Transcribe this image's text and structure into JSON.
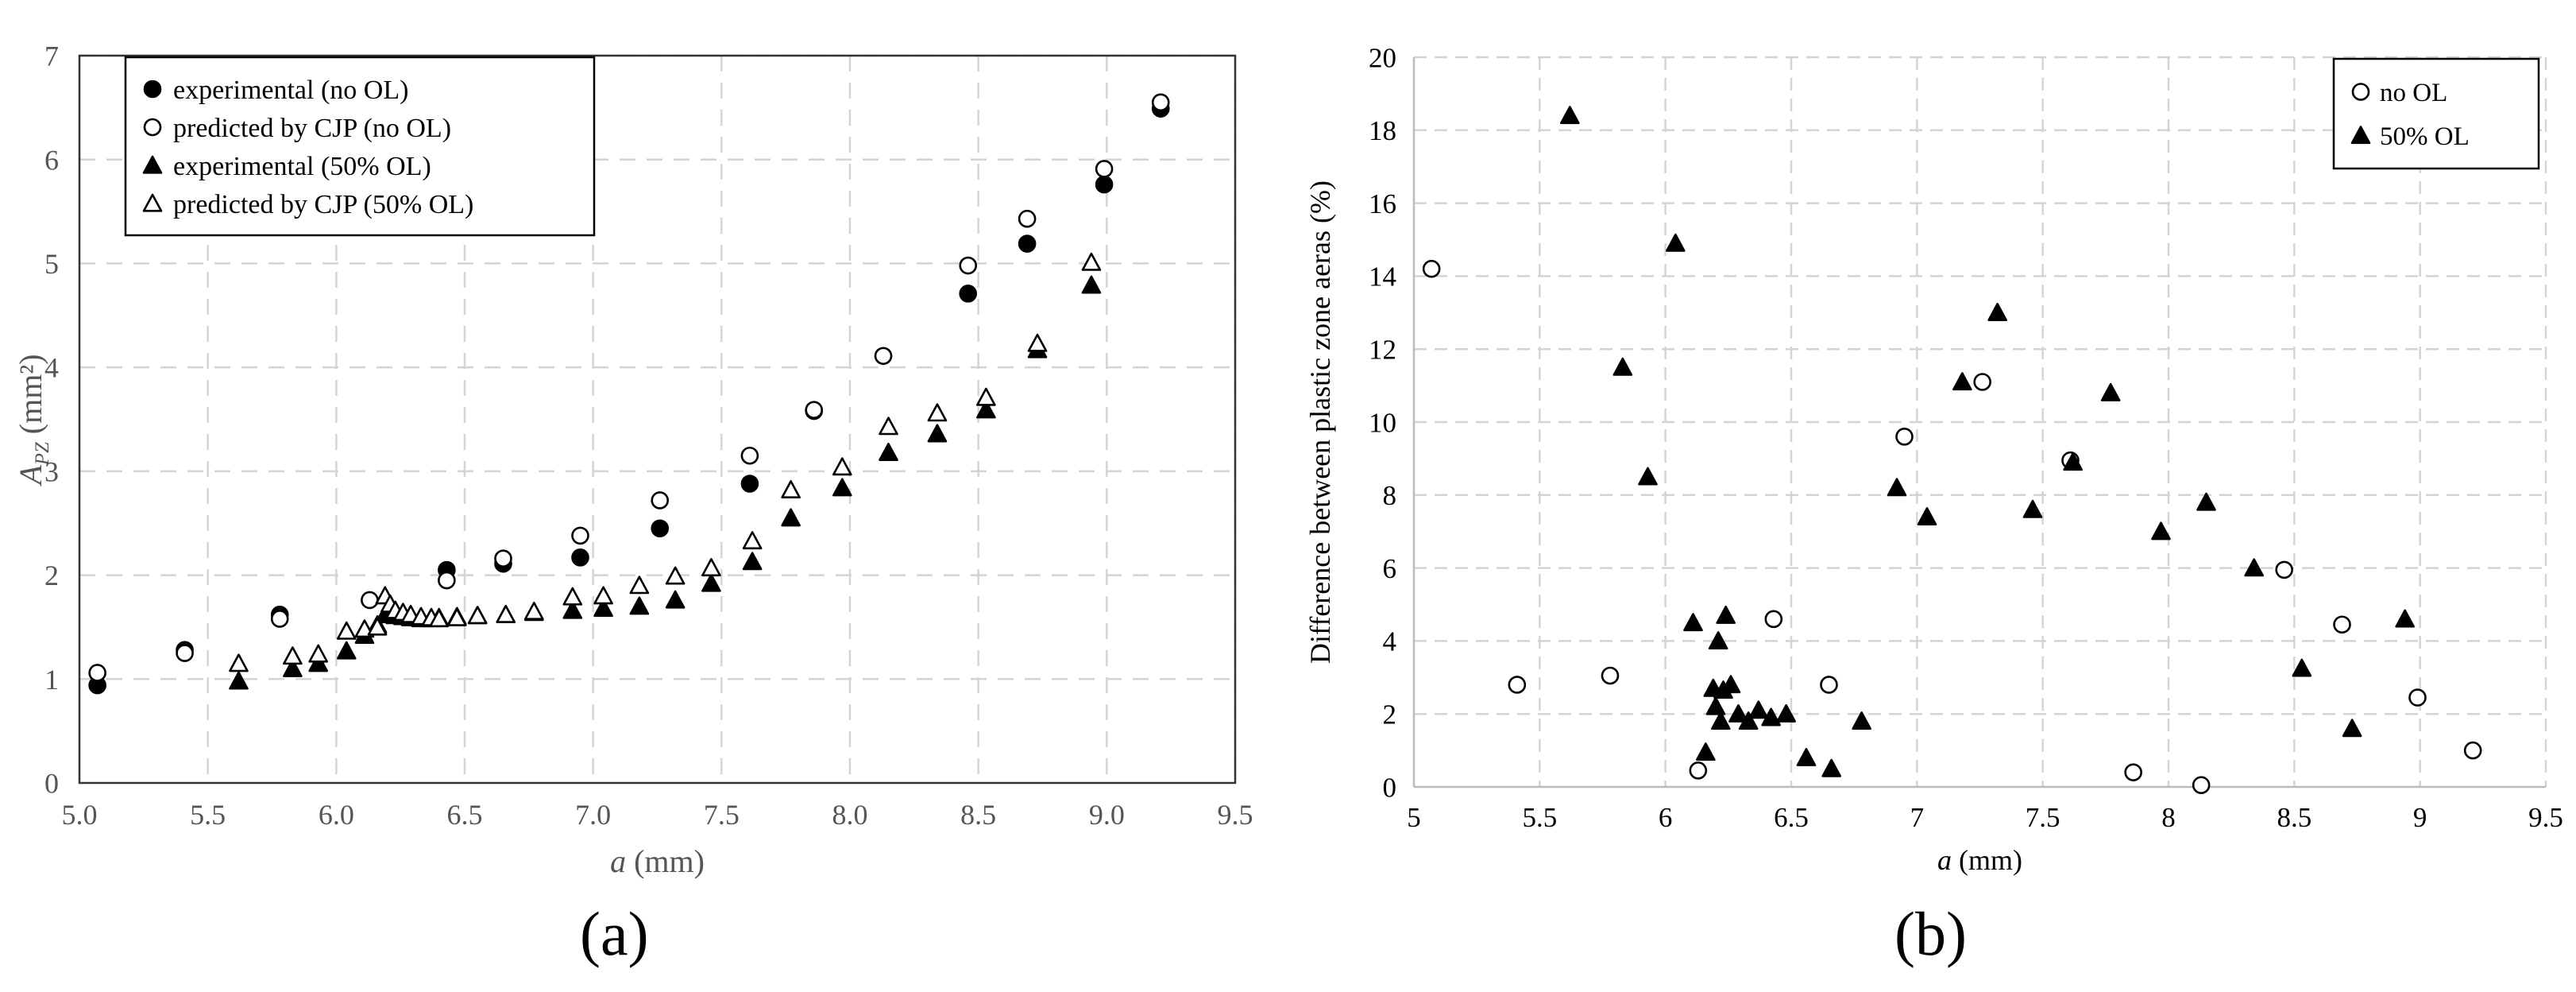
{
  "panel_labels": {
    "a": "(a)",
    "b": "(b)"
  },
  "chart_data": [
    {
      "type": "scatter",
      "panel": "(a)",
      "title": "",
      "xlabel": "a (mm)",
      "xlabel_italic": "a",
      "xlabel_rest": " (mm)",
      "ylabel": "A_PZ (mm²)",
      "ylabel_main": "A",
      "ylabel_sub": "PZ",
      "ylabel_rest": " (mm²)",
      "xlim": [
        5.0,
        9.5
      ],
      "ylim": [
        0,
        7
      ],
      "xticks": [
        "5.0",
        "5.5",
        "6.0",
        "6.5",
        "7.0",
        "7.5",
        "8.0",
        "8.5",
        "9.0",
        "9.5"
      ],
      "xtick_values": [
        5.0,
        5.5,
        6.0,
        6.5,
        7.0,
        7.5,
        8.0,
        8.5,
        9.0,
        9.5
      ],
      "yticks": [
        "0",
        "1",
        "2",
        "3",
        "4",
        "5",
        "6",
        "7"
      ],
      "ytick_values": [
        0,
        1,
        2,
        3,
        4,
        5,
        6,
        7
      ],
      "grid": true,
      "legend_position": "top-left",
      "series": [
        {
          "name": "experimental (no OL)",
          "marker": "filled-circle",
          "x": [
            5.07,
            5.41,
            5.78,
            6.43,
            6.65,
            6.95,
            7.26,
            7.61,
            7.86,
            8.46,
            8.69,
            8.99,
            9.21
          ],
          "y": [
            0.94,
            1.28,
            1.62,
            2.05,
            2.11,
            2.17,
            2.45,
            2.88,
            3.58,
            4.71,
            5.19,
            5.76,
            6.49
          ]
        },
        {
          "name": "predicted by CJP (no OL)",
          "marker": "open-circle",
          "x": [
            5.07,
            5.41,
            5.78,
            6.13,
            6.43,
            6.65,
            6.95,
            7.26,
            7.61,
            7.86,
            8.13,
            8.46,
            8.69,
            8.99,
            9.21
          ],
          "y": [
            1.06,
            1.25,
            1.58,
            1.76,
            1.95,
            2.16,
            2.38,
            2.72,
            3.15,
            3.59,
            4.11,
            4.98,
            5.43,
            5.91,
            6.55
          ]
        },
        {
          "name": "experimental (50% OL)",
          "marker": "filled-triangle",
          "x": [
            5.62,
            5.83,
            5.93,
            6.04,
            6.11,
            6.16,
            6.19,
            6.21,
            6.23,
            6.26,
            6.29,
            6.33,
            6.37,
            6.4,
            6.47,
            6.55,
            6.66,
            6.77,
            6.92,
            7.04,
            7.18,
            7.32,
            7.46,
            7.62,
            7.77,
            7.97,
            8.15,
            8.34,
            8.53,
            8.73,
            8.94
          ],
          "y": [
            0.98,
            1.1,
            1.15,
            1.27,
            1.42,
            1.52,
            1.62,
            1.62,
            1.61,
            1.6,
            1.59,
            1.58,
            1.58,
            1.59,
            1.6,
            1.61,
            1.62,
            1.64,
            1.66,
            1.68,
            1.7,
            1.76,
            1.92,
            2.13,
            2.55,
            2.84,
            3.18,
            3.36,
            3.59,
            4.17,
            4.79
          ]
        },
        {
          "name": "predicted by CJP (50% OL)",
          "marker": "open-triangle",
          "x": [
            5.62,
            5.83,
            5.93,
            6.04,
            6.11,
            6.16,
            6.19,
            6.21,
            6.23,
            6.26,
            6.29,
            6.33,
            6.37,
            6.4,
            6.47,
            6.55,
            6.66,
            6.77,
            6.92,
            7.04,
            7.18,
            7.32,
            7.46,
            7.62,
            7.77,
            7.97,
            8.15,
            8.34,
            8.53,
            8.73,
            8.94
          ],
          "y": [
            1.15,
            1.22,
            1.24,
            1.46,
            1.48,
            1.5,
            1.8,
            1.72,
            1.66,
            1.64,
            1.62,
            1.6,
            1.59,
            1.58,
            1.59,
            1.61,
            1.62,
            1.65,
            1.79,
            1.8,
            1.9,
            1.99,
            2.07,
            2.33,
            2.82,
            3.04,
            3.43,
            3.56,
            3.71,
            4.23,
            5.01
          ]
        }
      ]
    },
    {
      "type": "scatter",
      "panel": "(b)",
      "title": "",
      "xlabel": "a (mm)",
      "xlabel_italic": "a",
      "xlabel_rest": " (mm)",
      "ylabel": "Difference between plastic zone aeras (%)",
      "xlim": [
        5,
        9.5
      ],
      "ylim": [
        0,
        20
      ],
      "xticks": [
        "5",
        "5.5",
        "6",
        "6.5",
        "7",
        "7.5",
        "8",
        "8.5",
        "9",
        "9.5"
      ],
      "xtick_values": [
        5,
        5.5,
        6,
        6.5,
        7,
        7.5,
        8,
        8.5,
        9,
        9.5
      ],
      "yticks": [
        "0",
        "2",
        "4",
        "6",
        "8",
        "10",
        "12",
        "14",
        "16",
        "18",
        "20"
      ],
      "ytick_values": [
        0,
        2,
        4,
        6,
        8,
        10,
        12,
        14,
        16,
        18,
        20
      ],
      "grid": true,
      "legend_position": "top-right",
      "series": [
        {
          "name": "no OL",
          "marker": "open-circle",
          "x": [
            5.07,
            5.41,
            5.78,
            6.13,
            6.43,
            6.65,
            6.95,
            7.26,
            7.61,
            7.86,
            8.13,
            8.46,
            8.69,
            8.99,
            9.21
          ],
          "y": [
            14.2,
            2.8,
            3.05,
            0.45,
            4.6,
            2.8,
            9.6,
            11.1,
            8.95,
            0.4,
            0.05,
            5.95,
            4.45,
            2.45,
            1.0
          ]
        },
        {
          "name": "50% OL",
          "marker": "filled-triangle",
          "x": [
            5.62,
            5.83,
            5.93,
            6.04,
            6.11,
            6.16,
            6.19,
            6.2,
            6.21,
            6.22,
            6.23,
            6.24,
            6.26,
            6.29,
            6.33,
            6.37,
            6.42,
            6.48,
            6.56,
            6.66,
            6.78,
            6.92,
            7.04,
            7.18,
            7.32,
            7.46,
            7.62,
            7.77,
            7.97,
            8.15,
            8.34,
            8.53,
            8.73,
            8.94
          ],
          "y": [
            18.4,
            11.5,
            8.5,
            14.9,
            4.5,
            0.95,
            2.7,
            2.2,
            4.0,
            1.8,
            2.65,
            4.7,
            2.8,
            2.0,
            1.8,
            2.1,
            1.9,
            2.0,
            0.8,
            0.5,
            1.8,
            8.2,
            7.4,
            11.1,
            13.0,
            7.6,
            8.9,
            10.8,
            7.0,
            7.8,
            6.0,
            3.25,
            1.6,
            4.6
          ]
        }
      ]
    }
  ]
}
